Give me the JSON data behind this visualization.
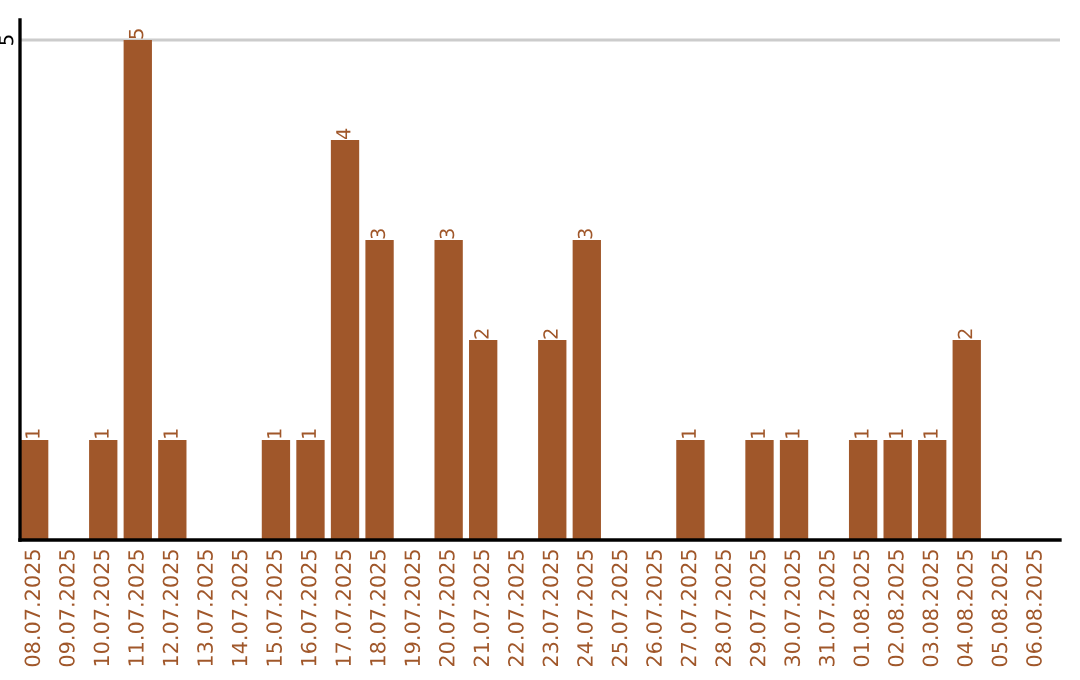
{
  "chart_data": {
    "type": "bar",
    "categories": [
      "08.07.2025",
      "09.07.2025",
      "10.07.2025",
      "11.07.2025",
      "12.07.2025",
      "13.07.2025",
      "14.07.2025",
      "15.07.2025",
      "16.07.2025",
      "17.07.2025",
      "18.07.2025",
      "19.07.2025",
      "20.07.2025",
      "21.07.2025",
      "22.07.2025",
      "23.07.2025",
      "24.07.2025",
      "25.07.2025",
      "26.07.2025",
      "27.07.2025",
      "28.07.2025",
      "29.07.2025",
      "30.07.2025",
      "31.07.2025",
      "01.08.2025",
      "02.08.2025",
      "03.08.2025",
      "04.08.2025",
      "05.08.2025",
      "06.08.2025"
    ],
    "values": [
      1,
      0,
      1,
      5,
      1,
      0,
      0,
      1,
      1,
      4,
      3,
      0,
      3,
      2,
      0,
      2,
      3,
      0,
      0,
      1,
      0,
      1,
      1,
      0,
      1,
      1,
      1,
      2,
      0,
      0
    ],
    "value_labels": [
      "1",
      null,
      "1",
      "5",
      "1",
      null,
      null,
      "1",
      "1",
      "4",
      "3",
      null,
      "3",
      "2",
      null,
      "2",
      "3",
      null,
      null,
      "1",
      null,
      "1",
      "1",
      null,
      "1",
      "1",
      "1",
      "2",
      null,
      null
    ],
    "color": "#a0572a",
    "ylim": [
      0,
      5.2
    ],
    "yticks": [
      5
    ],
    "grid": "y"
  }
}
